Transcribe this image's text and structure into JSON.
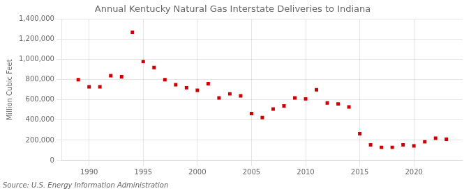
{
  "chart_data": {
    "type": "scatter",
    "title": "Annual Kentucky Natural Gas Interstate Deliveries to Indiana",
    "ylabel": "Million Cubic Feet",
    "source": "Source: U.S. Energy Information Administration",
    "x": [
      1989,
      1990,
      1991,
      1992,
      1993,
      1994,
      1995,
      1996,
      1997,
      1998,
      1999,
      2000,
      2001,
      2002,
      2003,
      2004,
      2005,
      2006,
      2007,
      2008,
      2009,
      2010,
      2011,
      2012,
      2013,
      2014,
      2015,
      2016,
      2017,
      2018,
      2019,
      2020,
      2021,
      2022,
      2023
    ],
    "values": [
      800000,
      730000,
      730000,
      840000,
      830000,
      1270000,
      980000,
      920000,
      800000,
      750000,
      720000,
      695000,
      760000,
      620000,
      660000,
      640000,
      465000,
      425000,
      510000,
      540000,
      620000,
      610000,
      700000,
      570000,
      560000,
      530000,
      265000,
      155000,
      130000,
      130000,
      155000,
      145000,
      185000,
      220000,
      210000
    ],
    "color": "#cc0000",
    "marker": "square",
    "xlim": [
      1987.5,
      2024.5
    ],
    "xticks": [
      1990,
      1995,
      2000,
      2005,
      2010,
      2015,
      2020
    ],
    "ylim": [
      0,
      1400000
    ],
    "yticks": [
      0,
      {
        "value": 200000,
        "label": "200,000"
      },
      {
        "value": 400000,
        "label": "400,000"
      },
      {
        "value": 600000,
        "label": "600,000"
      },
      {
        "value": 800000,
        "label": "800,000"
      },
      {
        "value": 1000000,
        "label": "1,000,000"
      },
      {
        "value": 1200000,
        "label": "1,200,000"
      },
      {
        "value": 1400000,
        "label": "1,400,000"
      }
    ],
    "grid": true
  }
}
